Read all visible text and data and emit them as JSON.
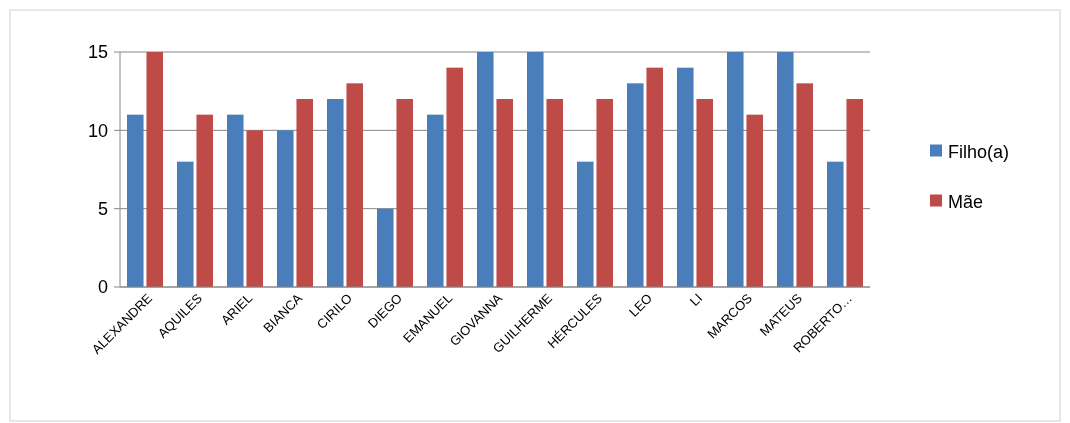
{
  "chart_data": {
    "type": "bar",
    "categories": [
      "ALEXANDRE",
      "AQUILES",
      "ARIEL",
      "BIANCA",
      "CIRILO",
      "DIEGO",
      "EMANUEL",
      "GIOVANNA",
      "GUILHERME",
      "HÉRCULES",
      "LEO",
      "LI",
      "MARCOS",
      "MATEUS",
      "ROBERTO…"
    ],
    "series": [
      {
        "name": "Filho(a)",
        "color": "#4a7ebb",
        "values": [
          11,
          8,
          11,
          10,
          12,
          5,
          11,
          15,
          15,
          8,
          13,
          14,
          15,
          15,
          8
        ]
      },
      {
        "name": "Mãe",
        "color": "#be4b48",
        "values": [
          15,
          11,
          10,
          12,
          13,
          12,
          14,
          12,
          12,
          12,
          14,
          12,
          11,
          13,
          12
        ]
      }
    ],
    "ylim": [
      0,
      15
    ],
    "yticks": [
      0,
      5,
      10,
      15
    ],
    "grid": "y",
    "legend": "right"
  }
}
